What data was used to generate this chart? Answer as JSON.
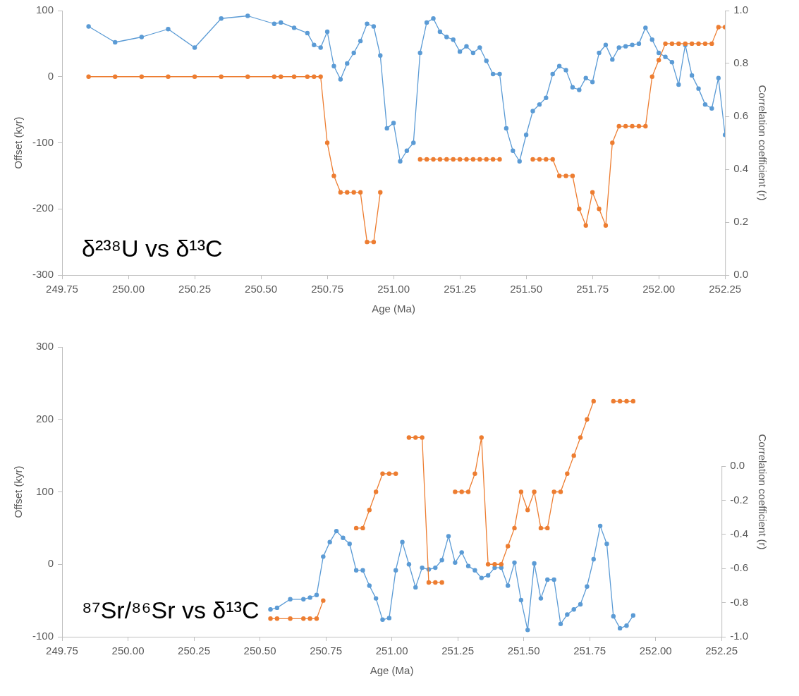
{
  "chart_data": [
    {
      "type": "line",
      "xlabel": "Age (Ma)",
      "ylabel": "Offset (kyr)",
      "y2label": "Correlation coefficient (r)",
      "annotations": [
        "δ²³⁸U vs δ¹³C"
      ],
      "marker": "circle",
      "line_style": "solid",
      "xlim": [
        249.75,
        252.25
      ],
      "xticks": [
        249.75,
        {
          "value": 250,
          "label": "250.00"
        },
        250.25,
        {
          "value": 250.5,
          "label": "250.50"
        },
        250.75,
        {
          "value": 251,
          "label": "251.00"
        },
        251.25,
        {
          "value": 251.5,
          "label": "251.50"
        },
        251.75,
        {
          "value": 252,
          "label": "252.00"
        },
        252.25
      ],
      "ylim": [
        -300,
        100
      ],
      "yticks": [
        -300,
        -200,
        -100,
        0,
        100
      ],
      "y2lim": [
        0,
        1
      ],
      "y2ticks": [
        {
          "value": 0,
          "label": "0.0"
        },
        0.2,
        0.4,
        0.6,
        0.8,
        {
          "value": 1,
          "label": "1.0"
        }
      ],
      "x": [
        249.85,
        249.95,
        250.05,
        250.15,
        250.25,
        250.35,
        250.45,
        250.55,
        250.575,
        250.625,
        250.675,
        250.7,
        250.725,
        250.75,
        250.775,
        250.8,
        250.825,
        250.85,
        250.875,
        250.9,
        250.925,
        250.95,
        250.975,
        251,
        251.025,
        251.05,
        251.075,
        251.1,
        251.125,
        251.15,
        251.175,
        251.2,
        251.225,
        251.25,
        251.275,
        251.3,
        251.325,
        251.35,
        251.375,
        251.4,
        251.425,
        251.45,
        251.475,
        251.5,
        251.525,
        251.55,
        251.575,
        251.6,
        251.625,
        251.65,
        251.675,
        251.7,
        251.725,
        251.75,
        251.775,
        251.8,
        251.825,
        251.85,
        251.875,
        251.9,
        251.925,
        251.95,
        251.975,
        252,
        252.025,
        252.05,
        252.075,
        252.1,
        252.125,
        252.15,
        252.175,
        252.2,
        252.225,
        252.25
      ],
      "series": [
        {
          "color": "#5b9bd5",
          "axis": "y2",
          "values": [
            0.94,
            0.88,
            0.9,
            0.93,
            0.86,
            0.97,
            0.98,
            0.95,
            0.955,
            0.935,
            0.915,
            0.87,
            0.86,
            0.92,
            0.79,
            0.74,
            0.8,
            0.84,
            0.885,
            0.95,
            0.94,
            0.83,
            0.555,
            0.575,
            0.43,
            0.47,
            0.5,
            0.84,
            0.955,
            0.97,
            0.92,
            0.9,
            0.89,
            0.845,
            0.865,
            0.84,
            0.86,
            0.81,
            0.76,
            0.76,
            0.555,
            0.47,
            0.43,
            0.53,
            0.62,
            0.645,
            0.67,
            0.76,
            0.79,
            0.775,
            0.71,
            0.7,
            0.745,
            0.73,
            0.84,
            0.87,
            0.815,
            0.86,
            0.865,
            0.87,
            0.875,
            0.935,
            0.89,
            0.84,
            0.825,
            0.805,
            0.72,
            0.87,
            0.755,
            0.705,
            0.645,
            0.63,
            0.745,
            0.53
          ]
        },
        {
          "color": "#ed7d31",
          "values": [
            0,
            0,
            0,
            0,
            0,
            0,
            0,
            0,
            0,
            0,
            0,
            0,
            0,
            -100,
            -150,
            -175,
            -175,
            -175,
            -175,
            -250,
            -250,
            -175,
            null,
            null,
            null,
            null,
            null,
            -125,
            -125,
            -125,
            -125,
            -125,
            -125,
            -125,
            -125,
            -125,
            -125,
            -125,
            -125,
            -125,
            null,
            null,
            null,
            null,
            -125,
            -125,
            -125,
            -125,
            -150,
            -150,
            -150,
            -200,
            -225,
            -175,
            -200,
            -225,
            -100,
            -75,
            -75,
            -75,
            -75,
            -75,
            0,
            25,
            50,
            50,
            50,
            50,
            50,
            50,
            50,
            50,
            75,
            75
          ]
        }
      ]
    },
    {
      "type": "line",
      "xlabel": "Age (Ma)",
      "ylabel": "Offset (kyr)",
      "y2label": "Correlation coefficient (r)",
      "annotations": [
        "⁸⁷Sr/⁸⁶Sr vs δ¹³C"
      ],
      "marker": "circle",
      "line_style": "solid",
      "xlim": [
        249.75,
        252.25
      ],
      "xticks": [
        249.75,
        {
          "value": 250,
          "label": "250.00"
        },
        250.25,
        {
          "value": 250.5,
          "label": "250.50"
        },
        250.75,
        {
          "value": 251,
          "label": "251.00"
        },
        251.25,
        {
          "value": 251.5,
          "label": "251.50"
        },
        251.75,
        {
          "value": 252,
          "label": "252.00"
        },
        252.25
      ],
      "ylim": [
        -100,
        300
      ],
      "yticks": [
        -100,
        0,
        100,
        200,
        300
      ],
      "y2lim": [
        -1,
        0.7
      ],
      "y2ticks": [
        {
          "value": -1,
          "label": "-1.0"
        },
        -0.8,
        -0.6,
        -0.4,
        -0.2,
        {
          "value": 0,
          "label": "0.0"
        }
      ],
      "x": [
        250.54,
        250.565,
        250.615,
        250.665,
        250.69,
        250.715,
        250.74,
        250.765,
        250.79,
        250.815,
        250.84,
        250.865,
        250.89,
        250.915,
        250.94,
        250.965,
        250.99,
        251.015,
        251.04,
        251.065,
        251.09,
        251.115,
        251.14,
        251.165,
        251.19,
        251.215,
        251.24,
        251.265,
        251.29,
        251.315,
        251.34,
        251.365,
        251.39,
        251.415,
        251.44,
        251.465,
        251.49,
        251.515,
        251.54,
        251.565,
        251.59,
        251.615,
        251.64,
        251.665,
        251.69,
        251.715,
        251.74,
        251.765,
        251.79,
        251.815,
        251.84,
        251.865,
        251.89,
        251.915
      ],
      "series": [
        {
          "color": "#5b9bd5",
          "axis": "y2",
          "values": [
            -0.84,
            -0.83,
            -0.78,
            -0.78,
            -0.77,
            -0.755,
            -0.53,
            -0.445,
            -0.38,
            -0.42,
            -0.455,
            -0.61,
            -0.61,
            -0.7,
            -0.775,
            -0.9,
            -0.89,
            -0.61,
            -0.445,
            -0.575,
            -0.71,
            -0.595,
            -0.605,
            -0.595,
            -0.55,
            -0.41,
            -0.565,
            -0.505,
            -0.585,
            -0.61,
            -0.655,
            -0.64,
            -0.595,
            -0.595,
            -0.7,
            -0.565,
            -0.785,
            -0.96,
            -0.57,
            -0.775,
            -0.665,
            -0.665,
            -0.925,
            -0.87,
            -0.84,
            -0.81,
            -0.705,
            -0.545,
            -0.35,
            -0.455,
            -0.88,
            -0.95,
            -0.935,
            -0.875
          ]
        },
        {
          "color": "#ed7d31",
          "values": [
            -75,
            -75,
            -75,
            -75,
            -75,
            -75,
            -50,
            null,
            null,
            null,
            null,
            50,
            50,
            75,
            100,
            125,
            125,
            125,
            null,
            175,
            175,
            175,
            -25,
            -25,
            -25,
            null,
            100,
            100,
            100,
            125,
            175,
            0,
            0,
            0,
            25,
            50,
            100,
            75,
            100,
            50,
            50,
            100,
            100,
            125,
            150,
            175,
            200,
            225,
            null,
            null,
            225,
            225,
            225,
            225
          ]
        }
      ]
    }
  ]
}
